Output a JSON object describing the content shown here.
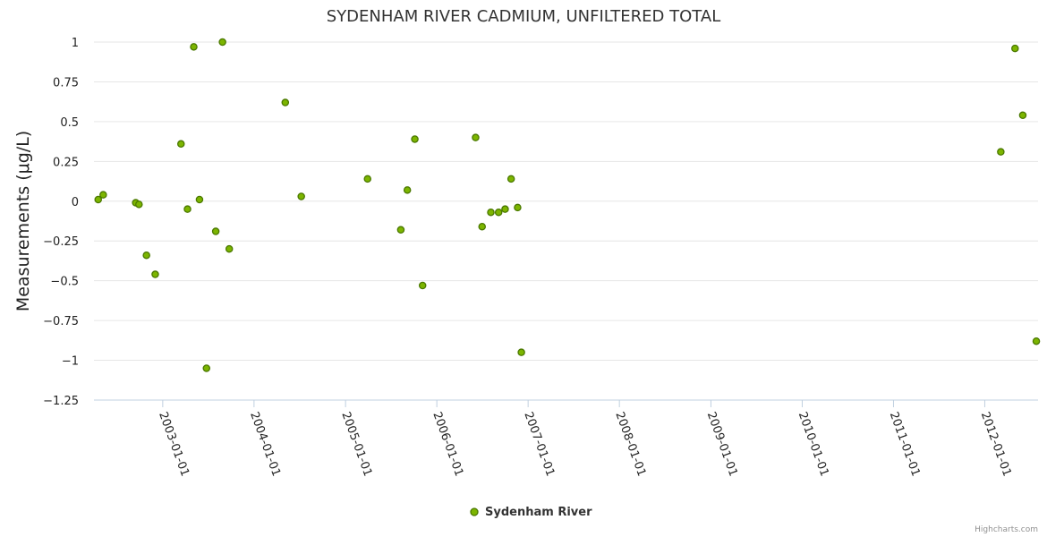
{
  "chart_data": {
    "type": "scatter",
    "title": "SYDENHAM RIVER CADMIUM, UNFILTERED TOTAL",
    "xlabel": "",
    "ylabel": "Measurements (μg/L)",
    "ylim": [
      -1.25,
      1
    ],
    "yticks": [
      1,
      0.75,
      0.5,
      0.25,
      0,
      -0.25,
      -0.5,
      -0.75,
      -1,
      -1.25
    ],
    "ytick_labels": [
      "1",
      "0.75",
      "0.5",
      "0.25",
      "0",
      "−0.25",
      "−0.5",
      "−0.75",
      "−1",
      "−1.25"
    ],
    "xlim": [
      "2002-04-01",
      "2012-08-01"
    ],
    "xticks": [
      "2003-01-01",
      "2004-01-01",
      "2005-01-01",
      "2006-01-01",
      "2007-01-01",
      "2008-01-01",
      "2009-01-01",
      "2010-01-01",
      "2011-01-01",
      "2012-01-01"
    ],
    "grid": true,
    "legend_position": "bottom-center",
    "series": [
      {
        "name": "Sydenham River",
        "color": "#7cb500",
        "edge_color": "#4a7800",
        "points": [
          {
            "x": "2002-04-18",
            "y": 0.01
          },
          {
            "x": "2002-05-08",
            "y": 0.04
          },
          {
            "x": "2002-09-15",
            "y": -0.01
          },
          {
            "x": "2002-09-28",
            "y": -0.02
          },
          {
            "x": "2002-10-28",
            "y": -0.34
          },
          {
            "x": "2002-12-02",
            "y": -0.46
          },
          {
            "x": "2003-03-15",
            "y": 0.36
          },
          {
            "x": "2003-04-10",
            "y": -0.05
          },
          {
            "x": "2003-05-05",
            "y": 0.97
          },
          {
            "x": "2003-05-28",
            "y": 0.01
          },
          {
            "x": "2003-06-25",
            "y": -1.05
          },
          {
            "x": "2003-08-01",
            "y": -0.19
          },
          {
            "x": "2003-08-28",
            "y": 1.0
          },
          {
            "x": "2003-09-24",
            "y": -0.3
          },
          {
            "x": "2004-05-05",
            "y": 0.62
          },
          {
            "x": "2004-07-08",
            "y": 0.03
          },
          {
            "x": "2005-03-30",
            "y": 0.14
          },
          {
            "x": "2005-08-10",
            "y": -0.18
          },
          {
            "x": "2005-09-05",
            "y": 0.07
          },
          {
            "x": "2005-10-05",
            "y": 0.39
          },
          {
            "x": "2005-11-05",
            "y": -0.53
          },
          {
            "x": "2006-06-05",
            "y": 0.4
          },
          {
            "x": "2006-07-01",
            "y": -0.16
          },
          {
            "x": "2006-08-05",
            "y": -0.07
          },
          {
            "x": "2006-09-05",
            "y": -0.07
          },
          {
            "x": "2006-10-01",
            "y": -0.05
          },
          {
            "x": "2006-10-25",
            "y": 0.14
          },
          {
            "x": "2006-11-20",
            "y": -0.04
          },
          {
            "x": "2006-12-05",
            "y": -0.95
          },
          {
            "x": "2012-03-05",
            "y": 0.31
          },
          {
            "x": "2012-05-01",
            "y": 0.96
          },
          {
            "x": "2012-06-01",
            "y": 0.54
          },
          {
            "x": "2012-07-25",
            "y": -0.88
          }
        ]
      }
    ],
    "credits": "Highcharts.com"
  }
}
